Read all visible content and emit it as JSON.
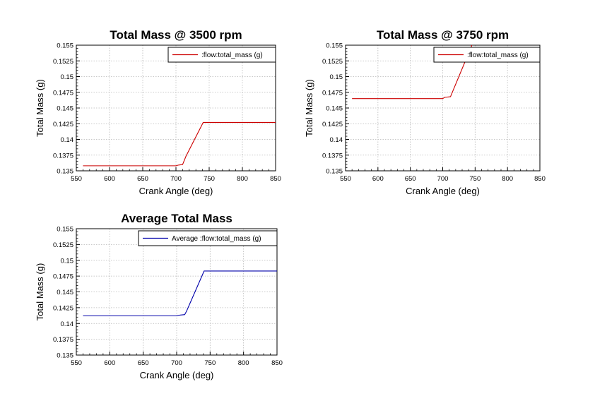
{
  "chart_data": [
    {
      "type": "line",
      "title": "Total Mass @ 3500 rpm",
      "xlabel": "Crank Angle (deg)",
      "ylabel": "Total Mass (g)",
      "xlim": [
        550,
        850
      ],
      "ylim": [
        0.135,
        0.155
      ],
      "x_ticks": [
        "550",
        "600",
        "650",
        "700",
        "750",
        "800",
        "850"
      ],
      "y_ticks": [
        "0.135",
        "0.1375",
        "0.14",
        "0.1425",
        "0.145",
        "0.1475",
        "0.15",
        "0.1525",
        "0.155"
      ],
      "grid": true,
      "legend_position": "top-right",
      "series": [
        {
          "name": ":flow:total_mass (g)",
          "color": "#cc0000",
          "x": [
            560,
            700,
            703,
            710,
            715,
            741,
            850
          ],
          "y": [
            0.1358,
            0.1358,
            0.1359,
            0.136,
            0.1373,
            0.1427,
            0.1427
          ]
        }
      ]
    },
    {
      "type": "line",
      "title": "Total Mass @ 3750 rpm",
      "xlabel": "Crank Angle (deg)",
      "ylabel": "Total Mass (g)",
      "xlim": [
        550,
        850
      ],
      "ylim": [
        0.135,
        0.155
      ],
      "x_ticks": [
        "550",
        "600",
        "650",
        "700",
        "750",
        "800",
        "850"
      ],
      "y_ticks": [
        "0.135",
        "0.1375",
        "0.14",
        "0.1425",
        "0.145",
        "0.1475",
        "0.15",
        "0.1525",
        "0.155"
      ],
      "grid": true,
      "legend_position": "top-right",
      "series": [
        {
          "name": ":flow:total_mass (g)",
          "color": "#cc0000",
          "x": [
            560,
            700,
            703,
            712,
            735,
            745
          ],
          "y": [
            0.1465,
            0.1465,
            0.1467,
            0.1468,
            0.1525,
            0.155
          ]
        }
      ]
    },
    {
      "type": "line",
      "title": "Average Total Mass",
      "xlabel": "Crank Angle (deg)",
      "ylabel": "Total Mass (g)",
      "xlim": [
        550,
        850
      ],
      "ylim": [
        0.135,
        0.155
      ],
      "x_ticks": [
        "550",
        "600",
        "650",
        "700",
        "750",
        "800",
        "850"
      ],
      "y_ticks": [
        "0.135",
        "0.1375",
        "0.14",
        "0.1425",
        "0.145",
        "0.1475",
        "0.15",
        "0.1525",
        "0.155"
      ],
      "grid": true,
      "legend_position": "top-right",
      "series": [
        {
          "name": "Average :flow:total_mass (g)",
          "color": "#0000aa",
          "x": [
            560,
            700,
            703,
            712,
            715,
            741,
            850
          ],
          "y": [
            0.1412,
            0.1412,
            0.1413,
            0.1414,
            0.142,
            0.1483,
            0.1483
          ]
        }
      ]
    }
  ]
}
